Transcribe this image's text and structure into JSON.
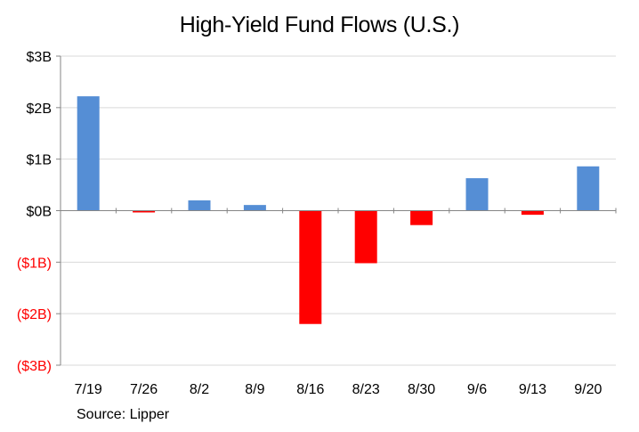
{
  "chart_data": {
    "type": "bar",
    "title": "High-Yield  Fund Flows (U.S.)",
    "categories": [
      "7/19",
      "7/26",
      "8/2",
      "8/9",
      "8/16",
      "8/23",
      "8/30",
      "9/6",
      "9/13",
      "9/20"
    ],
    "values": [
      2.22,
      -0.02,
      0.2,
      0.11,
      -2.2,
      -1.02,
      -0.28,
      0.63,
      -0.08,
      0.86
    ],
    "unit": "B",
    "ylim": [
      -3,
      3
    ],
    "yticks": [
      3,
      2,
      1,
      0,
      -1,
      -2,
      -3
    ],
    "ytick_labels": [
      "$3B",
      "$2B",
      "$1B",
      "$0B",
      "($1B)",
      "($2B)",
      "($3B)"
    ],
    "xlabel": "",
    "ylabel": "",
    "grid": true,
    "positive_color": "#558ED5",
    "negative_color": "#FF0000",
    "negative_label_color": "#FF0000",
    "source": "Source: Lipper"
  }
}
